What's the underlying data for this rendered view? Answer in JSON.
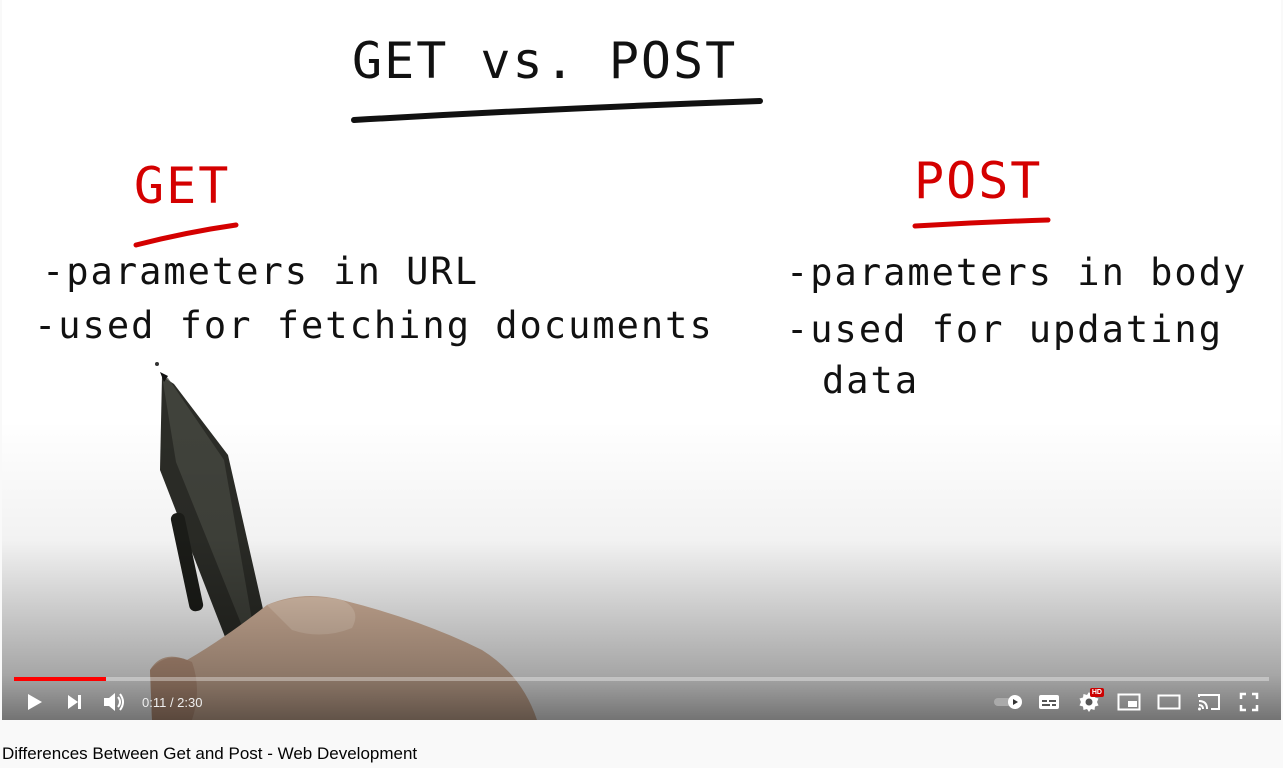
{
  "whiteboard": {
    "title": "GET vs. POST",
    "left_heading": "GET",
    "left_bullets": [
      "-parameters in URL",
      "-used for fetching documents"
    ],
    "right_heading": "POST",
    "right_bullets": [
      "-parameters in body",
      "-used for updating",
      "data"
    ]
  },
  "player": {
    "time_display": "0:11 / 2:30",
    "progress_played_fraction": 0.073,
    "progress_loaded_fraction": 0.073,
    "hd_badge": "HD",
    "icons": [
      "play-icon",
      "next-icon",
      "volume-icon",
      "autoplay-toggle-icon",
      "subtitles-icon",
      "settings-icon",
      "miniplayer-icon",
      "theater-mode-icon",
      "cast-icon",
      "fullscreen-icon"
    ],
    "colors": {
      "progress": "#ff0000",
      "ink_red": "#d40000",
      "ink_black": "#111111"
    }
  },
  "video": {
    "title": "Differences Between Get and Post - Web Development"
  }
}
